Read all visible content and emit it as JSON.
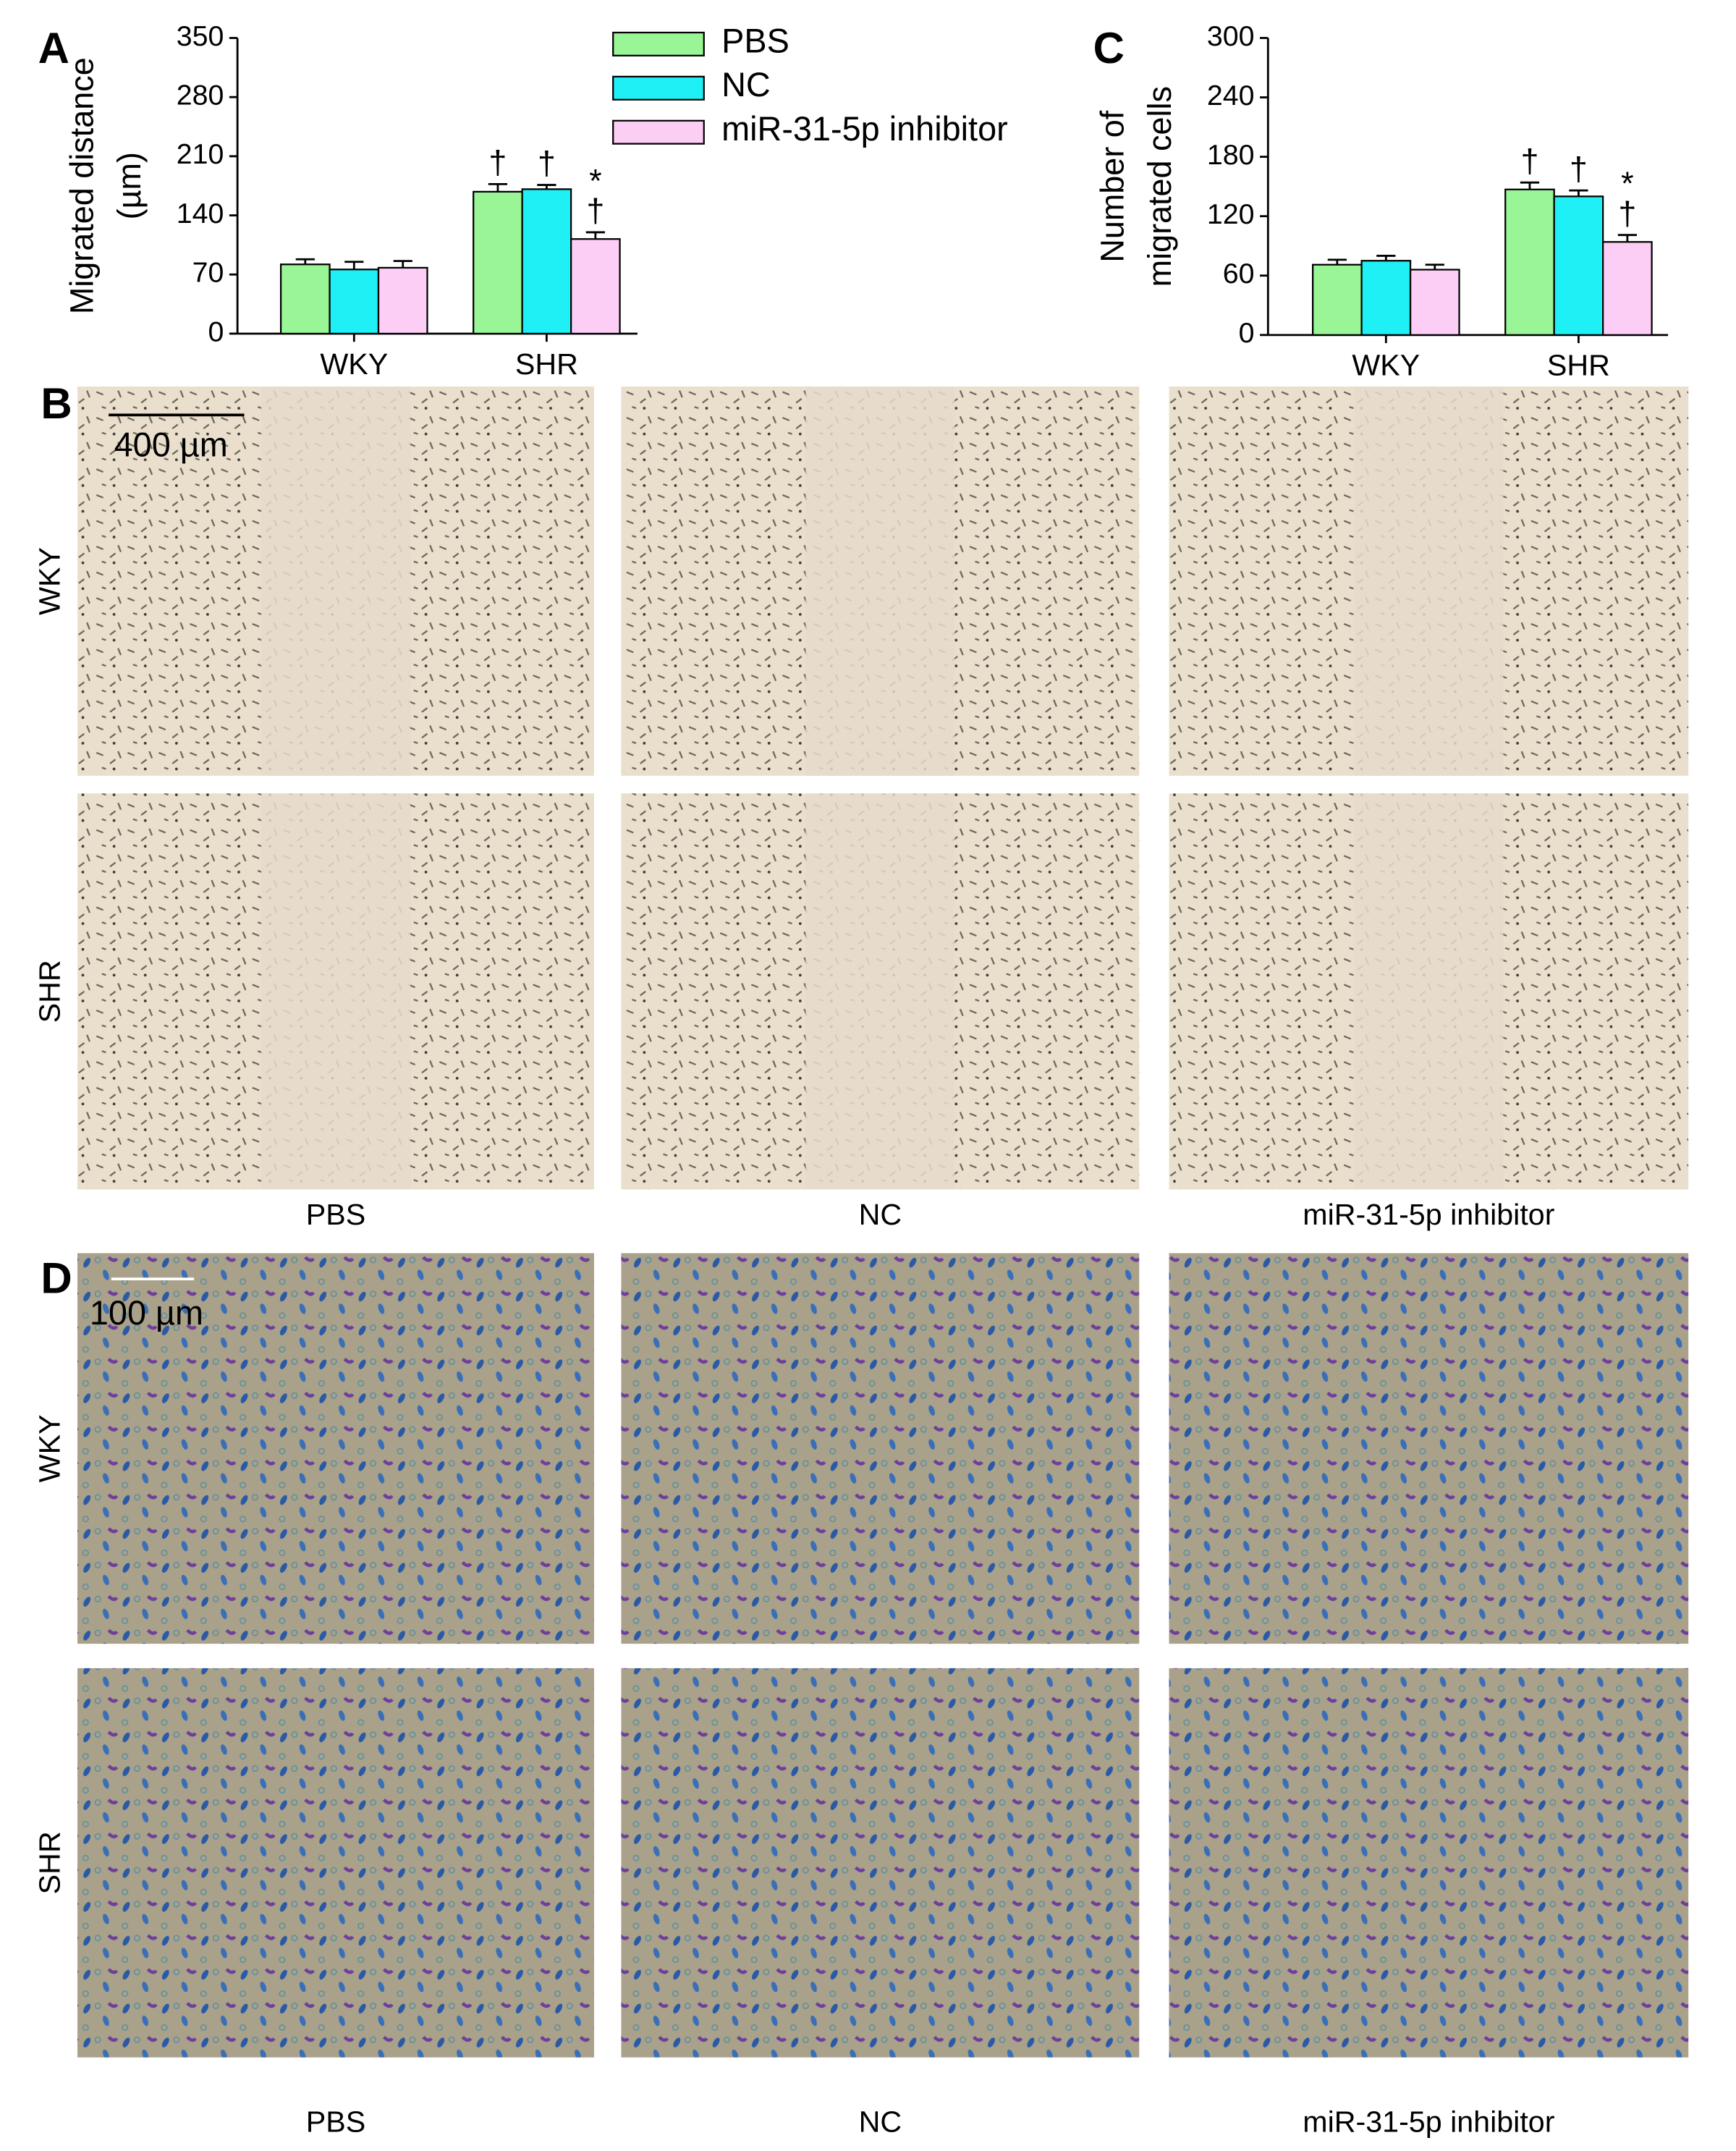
{
  "chart_data": [
    {
      "type": "bar",
      "panel": "A",
      "ylabel": [
        "Migrated distance",
        "(µm)"
      ],
      "categories": [
        "WKY",
        "SHR"
      ],
      "series": [
        {
          "name": "PBS",
          "color": "#99f595",
          "values": [
            82,
            168
          ],
          "errors": [
            6,
            9
          ]
        },
        {
          "name": "NC",
          "color": "#1ff0f5",
          "values": [
            76,
            171
          ],
          "errors": [
            9,
            5
          ]
        },
        {
          "name": "miR-31-5p inhibitor",
          "color": "#fccdf5",
          "values": [
            78,
            112
          ],
          "errors": [
            8,
            8
          ]
        }
      ],
      "annotations": [
        {
          "text": "†",
          "series": 0,
          "category": 1
        },
        {
          "text": "†",
          "series": 1,
          "category": 1
        },
        {
          "text": "†",
          "series": 2,
          "category": 1
        },
        {
          "text": "*",
          "series": 2,
          "category": 1
        }
      ],
      "ylim": [
        0,
        350
      ],
      "yticks": [
        0,
        70,
        140,
        210,
        280,
        350
      ],
      "legend": true
    },
    {
      "type": "bar",
      "panel": "C",
      "ylabel": [
        "Number of",
        "migrated cells"
      ],
      "categories": [
        "WKY",
        "SHR"
      ],
      "series": [
        {
          "color": "#99f595",
          "values": [
            71,
            147
          ],
          "errors": [
            5,
            7
          ]
        },
        {
          "color": "#1ff0f5",
          "values": [
            75,
            140
          ],
          "errors": [
            5,
            6
          ]
        },
        {
          "color": "#fccdf5",
          "values": [
            66,
            94
          ],
          "errors": [
            5,
            7
          ]
        }
      ],
      "annotations": [
        {
          "text": "†",
          "series": 0,
          "category": 1
        },
        {
          "text": "†",
          "series": 1,
          "category": 1
        },
        {
          "text": "†",
          "series": 2,
          "category": 1
        },
        {
          "text": "*",
          "series": 2,
          "category": 1
        }
      ],
      "ylim": [
        0,
        300
      ],
      "yticks": [
        0,
        60,
        120,
        180,
        240,
        300
      ],
      "legend": false
    }
  ],
  "panel_b": {
    "label": "B",
    "scale_bar": "400 µm",
    "rows": [
      "WKY",
      "SHR"
    ],
    "columns": [
      "PBS",
      "NC",
      "miR-31-5p inhibitor"
    ]
  },
  "panel_d": {
    "label": "D",
    "scale_bar": "100 µm",
    "rows": [
      "WKY",
      "SHR"
    ],
    "columns": [
      "PBS",
      "NC",
      "miR-31-5p inhibitor"
    ]
  }
}
